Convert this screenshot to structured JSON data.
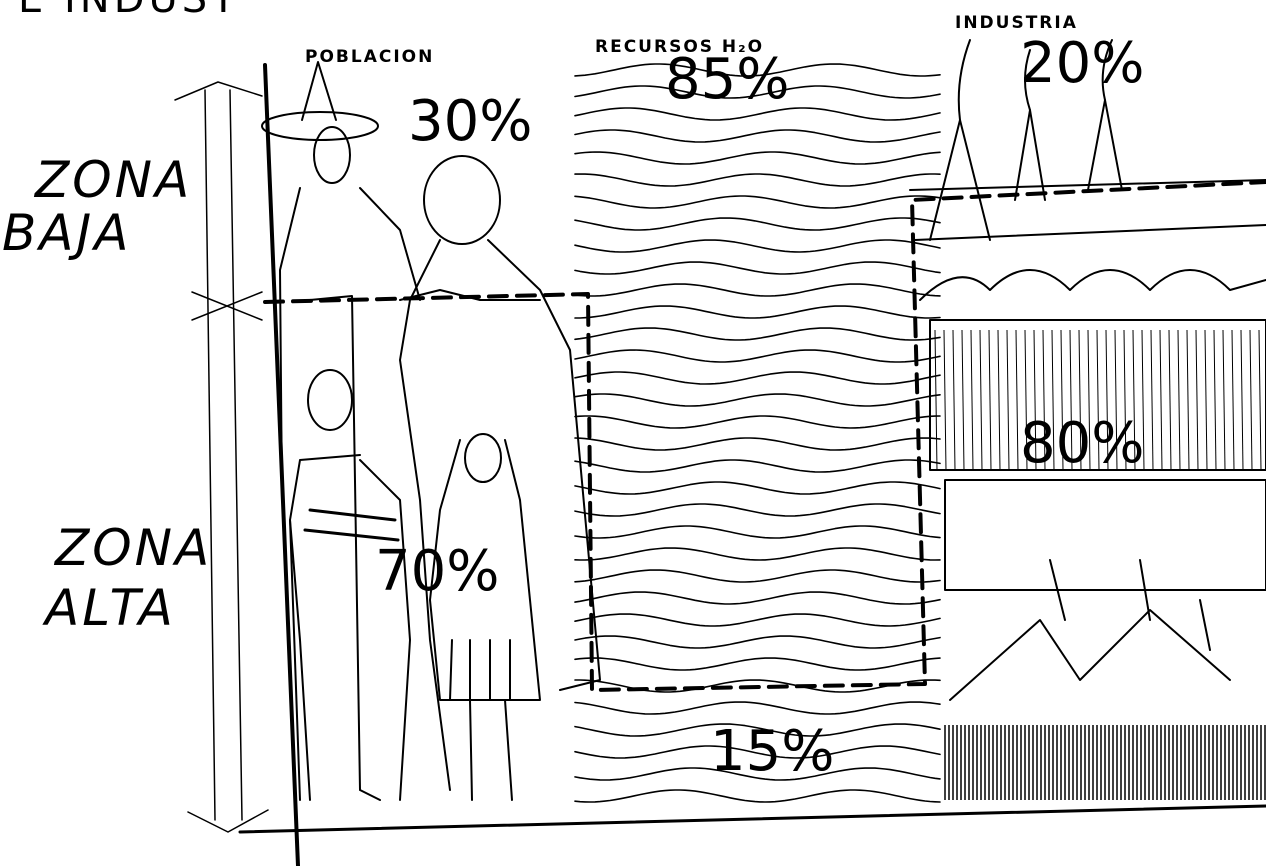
{
  "header": {
    "text": "E INDUST"
  },
  "zones": [
    {
      "lines": [
        "ZONA",
        "BAJA"
      ]
    },
    {
      "lines": [
        "ZONA",
        "ALTA"
      ]
    }
  ],
  "columns": [
    {
      "title": "POBLACION",
      "upper": "30%",
      "lower": "70%"
    },
    {
      "title": "RECURSOS H₂O",
      "upper": "85%",
      "lower": "15%"
    },
    {
      "title": "INDUSTRIA",
      "upper": "20%",
      "lower": "80%"
    }
  ]
}
